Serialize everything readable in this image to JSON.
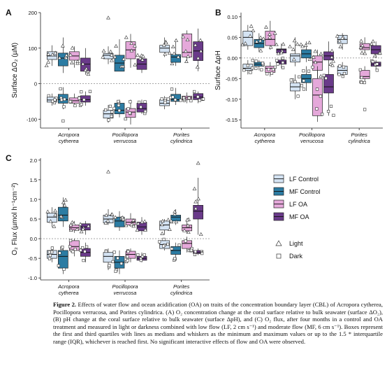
{
  "colors": {
    "LF Control": "#d4e3f3",
    "MF Control": "#2c7ca3",
    "LF OA": "#e5a8da",
    "MF OA": "#6a3a8a",
    "axis": "#222222",
    "zero_line": "#999999"
  },
  "legend": {
    "treatments": [
      "LF Control",
      "MF Control",
      "LF OA",
      "MF OA"
    ],
    "markers": [
      {
        "label": "Light",
        "icon": "triangle-icon"
      },
      {
        "label": "Dark",
        "icon": "square-icon"
      }
    ]
  },
  "caption": {
    "title": "Figure 2.",
    "text": "Effects of water flow and ocean acidification (OA) on traits of the concentration boundary layer (CBL) of Acropora cytherea, Pocillopora verrucosa, and Porites cylindrica. (A) O₂ concentration change at the coral surface relative to bulk seawater (surface ΔO₂), (B) pH change at the coral surface relative to bulk seawater (surface ΔpH), and (C) O₂ flux, after four months in a control and OA treatment and measured in light or darkness combined with low flow (LF, 2 cm s⁻¹) and moderate flow (MF, 6 cm s⁻¹). Boxes represent the first and third quartiles with lines as medians and whiskers as the minimum and maximum values or up to the 1.5 * interquartile range (IQR), whichever is reached first. No significant interactive effects of flow and OA were observed."
  },
  "chart_data": [
    {
      "panel": "A",
      "type": "box",
      "ylabel": "Surface ΔO₂ (µM)",
      "ylim": [
        -125,
        200
      ],
      "yticks": [
        -100,
        0,
        100,
        200
      ],
      "categories": [
        [
          "Acropora",
          "cytherea"
        ],
        [
          "Pocillopora",
          "verrucosa"
        ],
        [
          "Porites",
          "cylindrica"
        ]
      ],
      "series_order": [
        "LF Control",
        "MF Control",
        "LF OA",
        "MF OA"
      ],
      "zero_line": true,
      "boxes": [
        {
          "cat": 0,
          "series": "LF Control",
          "light": [
            50,
            68,
            78,
            90,
            108
          ],
          "dark": [
            -62,
            -52,
            -46,
            -38,
            -28
          ]
        },
        {
          "cat": 0,
          "series": "MF Control",
          "light": [
            30,
            50,
            72,
            86,
            130
          ],
          "dark": [
            -72,
            -55,
            -45,
            -30,
            -10
          ]
        },
        {
          "cat": 0,
          "series": "LF OA",
          "light": [
            45,
            66,
            78,
            90,
            105
          ],
          "dark": [
            -62,
            -55,
            -48,
            -40,
            -28
          ]
        },
        {
          "cat": 0,
          "series": "MF OA",
          "light": [
            25,
            35,
            55,
            72,
            100
          ],
          "dark": [
            -62,
            -52,
            -45,
            -34,
            -22
          ]
        },
        {
          "cat": 1,
          "series": "LF Control",
          "light": [
            55,
            70,
            80,
            85,
            105
          ],
          "dark": [
            -110,
            -97,
            -85,
            -75,
            -60
          ]
        },
        {
          "cat": 1,
          "series": "MF Control",
          "light": [
            35,
            35,
            58,
            80,
            125
          ],
          "dark": [
            -95,
            -85,
            -75,
            -55,
            -45
          ]
        },
        {
          "cat": 1,
          "series": "LF OA",
          "light": [
            45,
            70,
            95,
            118,
            140
          ],
          "dark": [
            -115,
            -95,
            -80,
            -70,
            -45
          ]
        },
        {
          "cat": 1,
          "series": "MF OA",
          "light": [
            30,
            40,
            55,
            70,
            80
          ],
          "dark": [
            -85,
            -80,
            -70,
            -55,
            -45
          ]
        },
        {
          "cat": 2,
          "series": "LF Control",
          "light": [
            75,
            88,
            100,
            108,
            130
          ],
          "dark": [
            -72,
            -62,
            -55,
            -45,
            -35
          ]
        },
        {
          "cat": 2,
          "series": "MF Control",
          "light": [
            50,
            60,
            75,
            82,
            125
          ],
          "dark": [
            -60,
            -50,
            -45,
            -30,
            -12
          ]
        },
        {
          "cat": 2,
          "series": "LF OA",
          "light": [
            60,
            75,
            88,
            140,
            150
          ],
          "dark": [
            -55,
            -45,
            -40,
            -35,
            -25
          ]
        },
        {
          "cat": 2,
          "series": "MF OA",
          "light": [
            35,
            65,
            92,
            118,
            155
          ],
          "dark": [
            -55,
            -45,
            -38,
            -28,
            -22
          ]
        }
      ],
      "outliers": [
        {
          "cat": 1,
          "series": "LF Control",
          "kind": "light",
          "value": 185
        },
        {
          "cat": 0,
          "series": "MF Control",
          "kind": "dark",
          "value": -105
        }
      ]
    },
    {
      "panel": "B",
      "type": "box",
      "ylabel": "Surface ΔpH",
      "ylim": [
        -0.17,
        0.11
      ],
      "yticks": [
        -0.15,
        -0.1,
        -0.05,
        0.0,
        0.05,
        0.1
      ],
      "ytick_labels": [
        "-0.15",
        "-0.10",
        "-0.05",
        "0.00",
        "0.05",
        "0.10"
      ],
      "categories": [
        [
          "Acropora",
          "cytherea"
        ],
        [
          "Pocillopora",
          "verrucosa"
        ],
        [
          "Porites",
          "cylindrica"
        ]
      ],
      "series_order": [
        "LF Control",
        "MF Control",
        "LF OA",
        "MF OA"
      ],
      "zero_line": true,
      "boxes": [
        {
          "cat": 0,
          "series": "LF Control",
          "light": [
            0.02,
            0.03,
            0.05,
            0.065,
            0.08
          ],
          "dark": [
            -0.04,
            -0.03,
            -0.025,
            -0.015,
            -0.005
          ]
        },
        {
          "cat": 0,
          "series": "MF Control",
          "light": [
            0.015,
            0.025,
            0.035,
            0.045,
            0.06
          ],
          "dark": [
            -0.03,
            -0.02,
            -0.015,
            -0.01,
            -0.005
          ]
        },
        {
          "cat": 0,
          "series": "LF OA",
          "light": [
            0.02,
            0.03,
            0.045,
            0.065,
            0.09
          ],
          "dark": [
            -0.045,
            -0.035,
            -0.025,
            -0.02,
            -0.01
          ]
        },
        {
          "cat": 0,
          "series": "MF OA",
          "light": [
            0.01,
            0.012,
            0.02,
            0.022,
            0.035
          ],
          "dark": [
            -0.025,
            -0.015,
            -0.01,
            -0.005,
            0.0
          ]
        },
        {
          "cat": 1,
          "series": "LF Control",
          "light": [
            -0.02,
            -0.01,
            0.005,
            0.01,
            0.05
          ],
          "dark": [
            -0.1,
            -0.08,
            -0.07,
            -0.06,
            -0.04
          ]
        },
        {
          "cat": 1,
          "series": "MF Control",
          "light": [
            -0.01,
            0.0,
            0.01,
            0.02,
            0.04
          ],
          "dark": [
            -0.08,
            -0.06,
            -0.05,
            -0.04,
            -0.02
          ]
        },
        {
          "cat": 1,
          "series": "LF OA",
          "light": [
            -0.06,
            -0.03,
            -0.01,
            0.005,
            0.02
          ],
          "dark": [
            -0.155,
            -0.14,
            -0.09,
            -0.05,
            -0.02
          ]
        },
        {
          "cat": 1,
          "series": "MF OA",
          "light": [
            -0.02,
            -0.005,
            0.005,
            0.015,
            0.04
          ],
          "dark": [
            -0.14,
            -0.085,
            -0.07,
            -0.04,
            -0.02
          ]
        },
        {
          "cat": 2,
          "series": "LF Control",
          "light": [
            0.02,
            0.035,
            0.045,
            0.055,
            0.06
          ],
          "dark": [
            -0.045,
            -0.04,
            -0.03,
            -0.02,
            -0.01
          ]
        },
        {
          "cat": 2,
          "series": "LF OA",
          "light": [
            0.01,
            0.02,
            0.025,
            0.035,
            0.05
          ],
          "dark": [
            -0.06,
            -0.05,
            -0.045,
            -0.03,
            -0.02
          ]
        },
        {
          "cat": 2,
          "series": "MF OA",
          "light": [
            0.0,
            0.01,
            0.02,
            0.03,
            0.04
          ],
          "dark": [
            -0.03,
            -0.02,
            -0.015,
            -0.01,
            -0.005
          ]
        }
      ],
      "outliers": [
        {
          "cat": 2,
          "series": "LF OA",
          "kind": "dark",
          "value": -0.125
        }
      ]
    },
    {
      "panel": "C",
      "type": "box",
      "ylabel": "O₂ Flux (µmol h⁻¹cm⁻²)",
      "ylim": [
        -1.05,
        2.05
      ],
      "yticks": [
        -1.0,
        -0.5,
        0.0,
        0.5,
        1.0,
        1.5,
        2.0
      ],
      "ytick_labels": [
        "-1.0",
        "-0.5",
        "0.0",
        "0.5",
        "1.0",
        "1.5",
        "2.0"
      ],
      "categories": [
        [
          "Acropora",
          "cytherea"
        ],
        [
          "Pocillopora",
          "verrucosa"
        ],
        [
          "Porites",
          "cylindrica"
        ]
      ],
      "series_order": [
        "LF Control",
        "MF Control",
        "LF OA",
        "MF OA"
      ],
      "zero_line": true,
      "boxes": [
        {
          "cat": 0,
          "series": "LF Control",
          "light": [
            0.3,
            0.42,
            0.55,
            0.65,
            0.8
          ],
          "dark": [
            -0.6,
            -0.5,
            -0.4,
            -0.3,
            -0.2
          ]
        },
        {
          "cat": 0,
          "series": "MF Control",
          "light": [
            0.3,
            0.45,
            0.6,
            0.8,
            1.05
          ],
          "dark": [
            -0.9,
            -0.75,
            -0.45,
            -0.3,
            -0.2
          ]
        },
        {
          "cat": 0,
          "series": "LF OA",
          "light": [
            0.15,
            0.22,
            0.28,
            0.35,
            0.45
          ],
          "dark": [
            -0.45,
            -0.3,
            -0.2,
            -0.05,
            0.0
          ]
        },
        {
          "cat": 0,
          "series": "MF OA",
          "light": [
            0.1,
            0.22,
            0.3,
            0.38,
            0.45
          ],
          "dark": [
            -0.6,
            -0.45,
            -0.35,
            -0.25,
            -0.1
          ]
        },
        {
          "cat": 1,
          "series": "LF Control",
          "light": [
            0.35,
            0.4,
            0.5,
            0.6,
            0.75
          ],
          "dark": [
            -0.8,
            -0.6,
            -0.45,
            -0.35,
            -0.25
          ]
        },
        {
          "cat": 1,
          "series": "MF Control",
          "light": [
            0.2,
            0.3,
            0.45,
            0.55,
            0.7
          ],
          "dark": [
            -0.9,
            -0.75,
            -0.6,
            -0.45,
            -0.3
          ]
        },
        {
          "cat": 1,
          "series": "LF OA",
          "light": [
            0.3,
            0.35,
            0.42,
            0.5,
            0.65
          ],
          "dark": [
            -0.6,
            -0.5,
            -0.4,
            -0.32,
            -0.25
          ]
        },
        {
          "cat": 1,
          "series": "MF OA",
          "light": [
            0.1,
            0.2,
            0.3,
            0.42,
            0.55
          ],
          "dark": [
            -0.6,
            -0.55,
            -0.5,
            -0.45,
            -0.35
          ]
        },
        {
          "cat": 2,
          "series": "LF Control",
          "light": [
            0.1,
            0.22,
            0.35,
            0.45,
            0.5
          ],
          "dark": [
            -0.3,
            -0.25,
            -0.15,
            -0.05,
            0.0
          ]
        },
        {
          "cat": 2,
          "series": "MF Control",
          "light": [
            0.35,
            0.45,
            0.55,
            0.6,
            0.75
          ],
          "dark": [
            -0.55,
            -0.4,
            -0.3,
            -0.2,
            -0.1
          ]
        },
        {
          "cat": 2,
          "series": "LF OA",
          "light": [
            0.15,
            0.2,
            0.28,
            0.35,
            0.5
          ],
          "dark": [
            -0.35,
            -0.25,
            -0.12,
            -0.05,
            0.05
          ]
        },
        {
          "cat": 2,
          "series": "MF OA",
          "light": [
            0.1,
            0.5,
            0.7,
            0.85,
            1.55
          ],
          "dark": [
            -0.42,
            -0.38,
            -0.35,
            -0.3,
            -0.25
          ]
        }
      ],
      "outliers": [
        {
          "cat": 1,
          "series": "LF Control",
          "kind": "light",
          "value": 1.7
        },
        {
          "cat": 2,
          "series": "MF OA",
          "kind": "light",
          "value": 1.92
        }
      ]
    }
  ]
}
